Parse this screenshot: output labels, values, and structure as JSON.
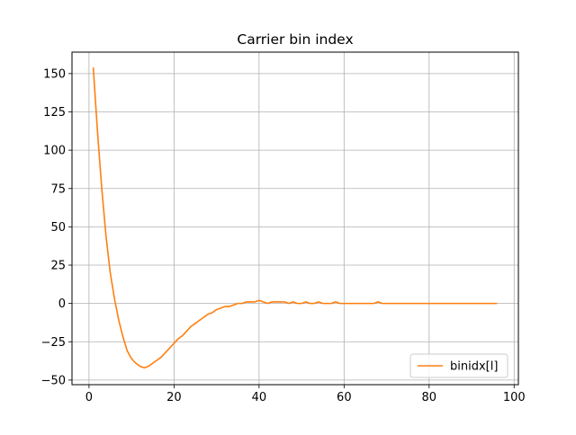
{
  "chart_data": {
    "type": "line",
    "title": "Carrier bin index",
    "xlabel": "",
    "ylabel": "",
    "xlim": [
      -4,
      101
    ],
    "ylim": [
      -53,
      164
    ],
    "xticks": [
      0,
      20,
      40,
      60,
      80,
      100
    ],
    "yticks": [
      -50,
      -25,
      0,
      25,
      50,
      75,
      100,
      125,
      150
    ],
    "grid": true,
    "legend_position": "lower-right",
    "series": [
      {
        "name": "binidx[l]",
        "color": "#ff7f0e",
        "x": [
          1,
          2,
          3,
          4,
          5,
          6,
          7,
          8,
          9,
          10,
          11,
          12,
          13,
          14,
          15,
          16,
          17,
          18,
          19,
          20,
          21,
          22,
          23,
          24,
          25,
          26,
          27,
          28,
          29,
          30,
          31,
          32,
          33,
          34,
          35,
          36,
          37,
          38,
          39,
          40,
          41,
          42,
          43,
          44,
          45,
          46,
          47,
          48,
          49,
          50,
          51,
          52,
          53,
          54,
          55,
          56,
          57,
          58,
          59,
          60,
          61,
          62,
          63,
          64,
          65,
          66,
          67,
          68,
          69,
          70,
          71,
          72,
          73,
          74,
          75,
          76,
          77,
          78,
          79,
          80,
          81,
          82,
          83,
          84,
          85,
          86,
          87,
          88,
          89,
          90,
          91,
          92,
          93,
          94,
          95,
          96
        ],
        "values": [
          154,
          112,
          75,
          44,
          20,
          3,
          -11,
          -22,
          -31,
          -36,
          -39,
          -41,
          -42,
          -41,
          -39,
          -37,
          -35,
          -32,
          -29,
          -26,
          -23,
          -21,
          -18,
          -15,
          -13,
          -11,
          -9,
          -7,
          -6,
          -4,
          -3,
          -2,
          -2,
          -1,
          0,
          0,
          1,
          1,
          1,
          2,
          1,
          0,
          1,
          1,
          1,
          1,
          0,
          1,
          0,
          0,
          1,
          0,
          0,
          1,
          0,
          0,
          0,
          1,
          0,
          0,
          0,
          0,
          0,
          0,
          0,
          0,
          0,
          1,
          0,
          0,
          0,
          0,
          0,
          0,
          0,
          0,
          0,
          0,
          0,
          0,
          0,
          0,
          0,
          0,
          0,
          0,
          0,
          0,
          0,
          0,
          0,
          0,
          0,
          0,
          0,
          0
        ]
      }
    ]
  }
}
